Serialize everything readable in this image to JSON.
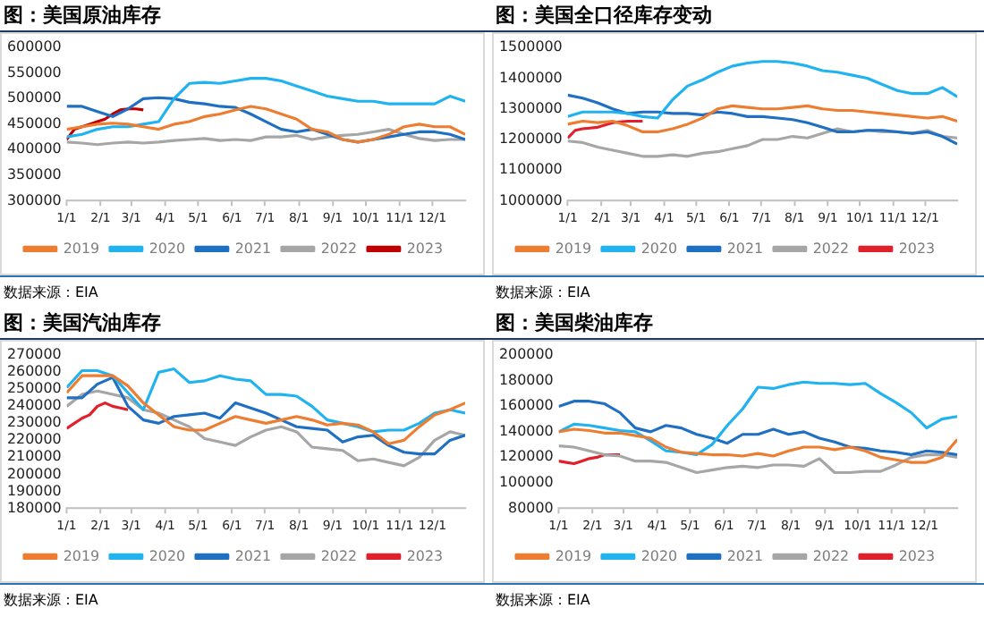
{
  "chart_data": [
    {
      "type": "line",
      "title": "图：美国原油库存",
      "annotations": [
        "数据来源：EIA"
      ],
      "legend": "bottom",
      "marker": "none",
      "line_style": "solid",
      "grid": false,
      "x": [
        "--01-01",
        "--01-15",
        "--01-29",
        "--02-12",
        "--02-26",
        "--03-12",
        "--03-26",
        "--04-09",
        "--04-23",
        "--05-07",
        "--05-21",
        "--06-04",
        "--06-18",
        "--07-02",
        "--07-16",
        "--07-30",
        "--08-13",
        "--08-27",
        "--09-10",
        "--09-24",
        "--10-08",
        "--10-22",
        "--11-05",
        "--11-19",
        "--12-03",
        "--12-17",
        "--12-31"
      ],
      "xlim": [
        "--01-01",
        "--12-31"
      ],
      "xticks": [
        {
          "value": "--01-01",
          "label": "1/1"
        },
        {
          "value": "--02-01",
          "label": "2/1"
        },
        {
          "value": "--03-01",
          "label": "3/1"
        },
        {
          "value": "--04-01",
          "label": "4/1"
        },
        {
          "value": "--05-01",
          "label": "5/1"
        },
        {
          "value": "--06-01",
          "label": "6/1"
        },
        {
          "value": "--07-01",
          "label": "7/1"
        },
        {
          "value": "--08-01",
          "label": "8/1"
        },
        {
          "value": "--09-01",
          "label": "9/1"
        },
        {
          "value": "--10-01",
          "label": "10/1"
        },
        {
          "value": "--11-01",
          "label": "11/1"
        },
        {
          "value": "--12-01",
          "label": "12/1"
        }
      ],
      "ylim": [
        300000,
        600000
      ],
      "yticks": [
        300000,
        350000,
        400000,
        450000,
        500000,
        550000,
        600000
      ],
      "series": [
        {
          "name": "2019",
          "color": "#ed7d31",
          "values": [
            440000,
            445000,
            450000,
            452000,
            450000,
            445000,
            440000,
            450000,
            455000,
            465000,
            470000,
            478000,
            485000,
            480000,
            470000,
            460000,
            440000,
            435000,
            420000,
            415000,
            420000,
            430000,
            445000,
            450000,
            445000,
            445000,
            430000
          ]
        },
        {
          "name": "2020",
          "color": "#21b2f0",
          "values": [
            425000,
            430000,
            440000,
            445000,
            445000,
            450000,
            455000,
            500000,
            530000,
            532000,
            530000,
            535000,
            540000,
            540000,
            535000,
            525000,
            515000,
            505000,
            500000,
            495000,
            495000,
            490000,
            490000,
            490000,
            490000,
            505000,
            495000
          ]
        },
        {
          "name": "2021",
          "color": "#1f6fc2",
          "values": [
            485000,
            485000,
            475000,
            465000,
            480000,
            500000,
            502000,
            500000,
            493000,
            490000,
            485000,
            483000,
            470000,
            455000,
            440000,
            435000,
            440000,
            430000,
            420000,
            415000,
            420000,
            425000,
            430000,
            435000,
            435000,
            430000,
            420000
          ]
        },
        {
          "name": "2022",
          "color": "#a6a6a6",
          "values": [
            415000,
            413000,
            410000,
            413000,
            415000,
            413000,
            415000,
            418000,
            420000,
            422000,
            418000,
            420000,
            418000,
            425000,
            425000,
            428000,
            420000,
            425000,
            428000,
            430000,
            435000,
            440000,
            430000,
            422000,
            418000,
            420000,
            420000
          ]
        },
        {
          "name": "2023",
          "color": "#c00000",
          "x": [
            "--01-01",
            "--01-08",
            "--01-15",
            "--01-22",
            "--01-29",
            "--02-05",
            "--02-12",
            "--02-19",
            "--02-26",
            "--03-05",
            "--03-12"
          ],
          "values": [
            420000,
            440000,
            445000,
            450000,
            455000,
            460000,
            470000,
            478000,
            480000,
            480000,
            478000
          ]
        }
      ]
    },
    {
      "type": "line",
      "title": "图：美国全口径库存变动",
      "annotations": [
        "数据来源：EIA"
      ],
      "legend": "bottom",
      "marker": "none",
      "line_style": "solid",
      "grid": false,
      "x": [
        "--01-01",
        "--01-15",
        "--01-29",
        "--02-12",
        "--02-26",
        "--03-12",
        "--03-26",
        "--04-09",
        "--04-23",
        "--05-07",
        "--05-21",
        "--06-04",
        "--06-18",
        "--07-02",
        "--07-16",
        "--07-30",
        "--08-13",
        "--08-27",
        "--09-10",
        "--09-24",
        "--10-08",
        "--10-22",
        "--11-05",
        "--11-19",
        "--12-03",
        "--12-17",
        "--12-31"
      ],
      "xlim": [
        "--01-01",
        "--12-31"
      ],
      "xticks": [
        {
          "value": "--01-01",
          "label": "1/1"
        },
        {
          "value": "--02-01",
          "label": "2/1"
        },
        {
          "value": "--03-01",
          "label": "3/1"
        },
        {
          "value": "--04-01",
          "label": "4/1"
        },
        {
          "value": "--05-01",
          "label": "5/1"
        },
        {
          "value": "--06-01",
          "label": "6/1"
        },
        {
          "value": "--07-01",
          "label": "7/1"
        },
        {
          "value": "--08-01",
          "label": "8/1"
        },
        {
          "value": "--09-01",
          "label": "9/1"
        },
        {
          "value": "--10-01",
          "label": "10/1"
        },
        {
          "value": "--11-01",
          "label": "11/1"
        },
        {
          "value": "--12-01",
          "label": "12/1"
        }
      ],
      "ylim": [
        1000000,
        1500000
      ],
      "yticks": [
        1000000,
        1100000,
        1200000,
        1300000,
        1400000,
        1500000
      ],
      "series": [
        {
          "name": "2019",
          "color": "#ed7d31",
          "values": [
            1250000,
            1260000,
            1255000,
            1260000,
            1245000,
            1225000,
            1225000,
            1235000,
            1250000,
            1270000,
            1300000,
            1310000,
            1305000,
            1300000,
            1300000,
            1305000,
            1310000,
            1300000,
            1295000,
            1295000,
            1290000,
            1285000,
            1280000,
            1275000,
            1270000,
            1275000,
            1260000
          ]
        },
        {
          "name": "2020",
          "color": "#21b2f0",
          "values": [
            1275000,
            1290000,
            1290000,
            1290000,
            1285000,
            1275000,
            1270000,
            1330000,
            1375000,
            1395000,
            1420000,
            1440000,
            1450000,
            1455000,
            1455000,
            1450000,
            1440000,
            1425000,
            1420000,
            1410000,
            1400000,
            1380000,
            1360000,
            1350000,
            1350000,
            1370000,
            1340000
          ]
        },
        {
          "name": "2021",
          "color": "#1f6fc2",
          "values": [
            1345000,
            1335000,
            1320000,
            1300000,
            1285000,
            1290000,
            1290000,
            1285000,
            1285000,
            1280000,
            1290000,
            1285000,
            1275000,
            1275000,
            1270000,
            1265000,
            1255000,
            1240000,
            1225000,
            1225000,
            1230000,
            1230000,
            1225000,
            1220000,
            1225000,
            1210000,
            1185000
          ]
        },
        {
          "name": "2022",
          "color": "#a6a6a6",
          "values": [
            1195000,
            1190000,
            1175000,
            1165000,
            1155000,
            1145000,
            1145000,
            1150000,
            1145000,
            1155000,
            1160000,
            1170000,
            1180000,
            1200000,
            1200000,
            1210000,
            1205000,
            1220000,
            1235000,
            1225000,
            1230000,
            1225000,
            1225000,
            1220000,
            1230000,
            1210000,
            1205000
          ]
        },
        {
          "name": "2023",
          "color": "#e0202a",
          "x": [
            "--01-01",
            "--01-08",
            "--01-15",
            "--01-29",
            "--02-12",
            "--02-26",
            "--03-12"
          ],
          "values": [
            1205000,
            1230000,
            1235000,
            1240000,
            1255000,
            1260000,
            1260000
          ]
        }
      ]
    },
    {
      "type": "line",
      "title": "图：美国汽油库存",
      "annotations": [
        "数据来源：EIA"
      ],
      "legend": "bottom",
      "marker": "none",
      "line_style": "solid",
      "grid": false,
      "x": [
        "--01-01",
        "--01-15",
        "--01-29",
        "--02-12",
        "--02-26",
        "--03-12",
        "--03-26",
        "--04-09",
        "--04-23",
        "--05-07",
        "--05-21",
        "--06-04",
        "--06-18",
        "--07-02",
        "--07-16",
        "--07-30",
        "--08-13",
        "--08-27",
        "--09-10",
        "--09-24",
        "--10-08",
        "--10-22",
        "--11-05",
        "--11-19",
        "--12-03",
        "--12-17",
        "--12-31"
      ],
      "xlim": [
        "--01-01",
        "--12-31"
      ],
      "xticks": [
        {
          "value": "--01-01",
          "label": "1/1"
        },
        {
          "value": "--02-01",
          "label": "2/1"
        },
        {
          "value": "--03-01",
          "label": "3/1"
        },
        {
          "value": "--04-01",
          "label": "4/1"
        },
        {
          "value": "--05-01",
          "label": "5/1"
        },
        {
          "value": "--06-01",
          "label": "6/1"
        },
        {
          "value": "--07-01",
          "label": "7/1"
        },
        {
          "value": "--08-01",
          "label": "8/1"
        },
        {
          "value": "--09-01",
          "label": "9/1"
        },
        {
          "value": "--10-01",
          "label": "10/1"
        },
        {
          "value": "--11-01",
          "label": "11/1"
        },
        {
          "value": "--12-01",
          "label": "12/1"
        }
      ],
      "ylim": [
        180000,
        270000
      ],
      "yticks": [
        180000,
        190000,
        200000,
        210000,
        220000,
        230000,
        240000,
        250000,
        260000,
        270000
      ],
      "series": [
        {
          "name": "2019",
          "color": "#ed7d31",
          "values": [
            248000,
            258000,
            258000,
            258000,
            252000,
            242000,
            235000,
            228000,
            226000,
            226000,
            230000,
            234000,
            232000,
            230000,
            232000,
            234000,
            232000,
            229000,
            230000,
            229000,
            225000,
            218000,
            220000,
            228000,
            235000,
            238000,
            242000
          ]
        },
        {
          "name": "2020",
          "color": "#21b2f0",
          "values": [
            251000,
            261000,
            261000,
            258000,
            248000,
            238000,
            260000,
            262000,
            254000,
            255000,
            258000,
            256000,
            255000,
            247000,
            247000,
            246000,
            240000,
            232000,
            230000,
            228000,
            225000,
            226000,
            226000,
            230000,
            236000,
            238000,
            236000
          ]
        },
        {
          "name": "2021",
          "color": "#1f6fc2",
          "values": [
            245000,
            245000,
            253000,
            257000,
            240000,
            232000,
            230000,
            234000,
            235000,
            236000,
            233000,
            242000,
            239000,
            236000,
            232000,
            228000,
            227000,
            226000,
            219000,
            222000,
            223000,
            217000,
            213000,
            212000,
            212000,
            220000,
            223000
          ]
        },
        {
          "name": "2022",
          "color": "#a6a6a6",
          "values": [
            240000,
            247000,
            249000,
            247000,
            245000,
            238000,
            236000,
            232000,
            228000,
            221000,
            219000,
            217000,
            222000,
            226000,
            228000,
            225000,
            216000,
            215000,
            214000,
            208000,
            209000,
            207000,
            205000,
            210000,
            220000,
            225000,
            223000
          ]
        },
        {
          "name": "2023",
          "color": "#e0202a",
          "x": [
            "--01-01",
            "--01-08",
            "--01-15",
            "--01-22",
            "--01-29",
            "--02-05",
            "--02-12",
            "--02-19",
            "--02-26"
          ],
          "values": [
            227000,
            230000,
            233000,
            235000,
            240000,
            242000,
            240000,
            239000,
            238000
          ]
        }
      ]
    },
    {
      "type": "line",
      "title": "图：美国柴油库存",
      "annotations": [
        "数据来源：EIA"
      ],
      "legend": "bottom",
      "marker": "none",
      "line_style": "solid",
      "grid": false,
      "x": [
        "--01-01",
        "--01-15",
        "--01-29",
        "--02-12",
        "--02-26",
        "--03-12",
        "--03-26",
        "--04-09",
        "--04-23",
        "--05-07",
        "--05-21",
        "--06-04",
        "--06-18",
        "--07-02",
        "--07-16",
        "--07-30",
        "--08-13",
        "--08-27",
        "--09-10",
        "--09-24",
        "--10-08",
        "--10-22",
        "--11-05",
        "--11-19",
        "--12-03",
        "--12-17",
        "--12-31"
      ],
      "xlim": [
        "--01-01",
        "--12-31"
      ],
      "xticks": [
        {
          "value": "--01-01",
          "label": "1/1"
        },
        {
          "value": "--02-01",
          "label": "2/1"
        },
        {
          "value": "--03-01",
          "label": "3/1"
        },
        {
          "value": "--04-01",
          "label": "4/1"
        },
        {
          "value": "--05-01",
          "label": "5/1"
        },
        {
          "value": "--06-01",
          "label": "6/1"
        },
        {
          "value": "--07-01",
          "label": "7/1"
        },
        {
          "value": "--08-01",
          "label": "8/1"
        },
        {
          "value": "--09-01",
          "label": "9/1"
        },
        {
          "value": "--10-01",
          "label": "10/1"
        },
        {
          "value": "--11-01",
          "label": "11/1"
        },
        {
          "value": "--12-01",
          "label": "12/1"
        }
      ],
      "ylim": [
        80000,
        200000
      ],
      "yticks": [
        80000,
        100000,
        120000,
        140000,
        160000,
        180000,
        200000
      ],
      "series": [
        {
          "name": "2019",
          "color": "#ed7d31",
          "values": [
            140000,
            142000,
            141000,
            139000,
            139000,
            137000,
            135000,
            128000,
            124000,
            123000,
            122000,
            122000,
            121000,
            123000,
            121000,
            125000,
            128000,
            128000,
            126000,
            128000,
            125000,
            120000,
            118000,
            116000,
            116000,
            120000,
            134000
          ]
        },
        {
          "name": "2020",
          "color": "#21b2f0",
          "values": [
            140000,
            146000,
            145000,
            143000,
            141000,
            140000,
            133000,
            125000,
            124000,
            122000,
            130000,
            145000,
            158000,
            175000,
            174000,
            177000,
            179000,
            178000,
            178000,
            177000,
            178000,
            170000,
            163000,
            155000,
            143000,
            150000,
            152000
          ]
        },
        {
          "name": "2021",
          "color": "#1f6fc2",
          "values": [
            160000,
            164000,
            164000,
            162000,
            155000,
            143000,
            140000,
            145000,
            143000,
            138000,
            135000,
            131000,
            138000,
            138000,
            142000,
            138000,
            140000,
            135000,
            132000,
            128000,
            127000,
            125000,
            124000,
            122000,
            125000,
            124000,
            122000
          ]
        },
        {
          "name": "2022",
          "color": "#a6a6a6",
          "values": [
            129000,
            128000,
            125000,
            122000,
            121000,
            117000,
            117000,
            116000,
            112000,
            108000,
            110000,
            112000,
            113000,
            112000,
            114000,
            114000,
            113000,
            119000,
            108000,
            108000,
            109000,
            109000,
            114000,
            120000,
            122000,
            122000,
            120000
          ]
        },
        {
          "name": "2023",
          "color": "#e0202a",
          "x": [
            "--01-01",
            "--01-08",
            "--01-15",
            "--01-22",
            "--01-29",
            "--02-05",
            "--02-12",
            "--02-19",
            "--02-26"
          ],
          "values": [
            117000,
            116000,
            115000,
            117000,
            119000,
            120000,
            122000,
            122000,
            122000
          ]
        }
      ]
    }
  ]
}
